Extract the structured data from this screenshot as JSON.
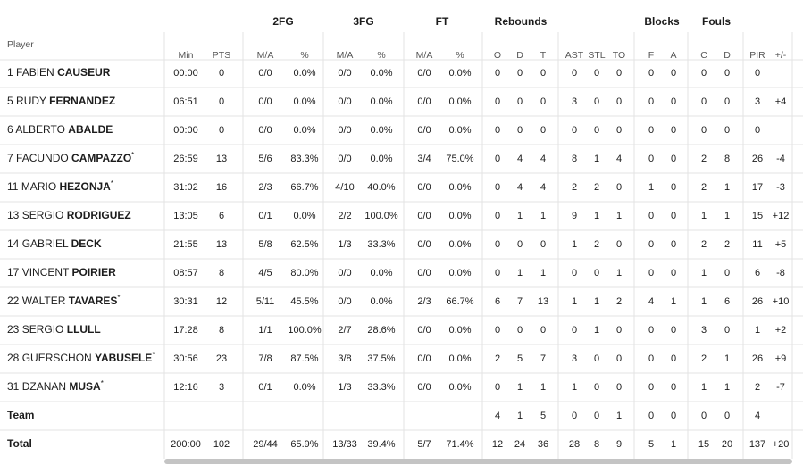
{
  "table": {
    "player_header": "Player",
    "group_headers": [
      "2FG",
      "3FG",
      "FT",
      "Rebounds",
      "Blocks",
      "Fouls"
    ],
    "columns": [
      "Min",
      "PTS",
      "M/A",
      "%",
      "M/A",
      "%",
      "M/A",
      "%",
      "O",
      "D",
      "T",
      "AST",
      "STL",
      "TO",
      "F",
      "A",
      "C",
      "D",
      "PIR",
      "+/-"
    ],
    "rows": [
      {
        "number": "1",
        "first": "FABIEN",
        "last": "CAUSEUR",
        "stats": [
          "00:00",
          "0",
          "0/0",
          "0.0%",
          "0/0",
          "0.0%",
          "0/0",
          "0.0%",
          "0",
          "0",
          "0",
          "0",
          "0",
          "0",
          "0",
          "0",
          "0",
          "0",
          "0",
          null
        ]
      },
      {
        "number": "5",
        "first": "RUDY",
        "last": "FERNANDEZ",
        "stats": [
          "06:51",
          "0",
          "0/0",
          "0.0%",
          "0/0",
          "0.0%",
          "0/0",
          "0.0%",
          "0",
          "0",
          "0",
          "3",
          "0",
          "0",
          "0",
          "0",
          "0",
          "0",
          "3",
          "+4"
        ]
      },
      {
        "number": "6",
        "first": "ALBERTO",
        "last": "ABALDE",
        "stats": [
          "00:00",
          "0",
          "0/0",
          "0.0%",
          "0/0",
          "0.0%",
          "0/0",
          "0.0%",
          "0",
          "0",
          "0",
          "0",
          "0",
          "0",
          "0",
          "0",
          "0",
          "0",
          "0",
          null
        ]
      },
      {
        "number": "7",
        "first": "FACUNDO",
        "last": "CAMPAZZO",
        "mark": "*",
        "stats": [
          "26:59",
          "13",
          "5/6",
          "83.3%",
          "0/0",
          "0.0%",
          "3/4",
          "75.0%",
          "0",
          "4",
          "4",
          "8",
          "1",
          "4",
          "0",
          "0",
          "2",
          "8",
          "26",
          "-4"
        ]
      },
      {
        "number": "11",
        "first": "MARIO",
        "last": "HEZONJA",
        "mark": "*",
        "stats": [
          "31:02",
          "16",
          "2/3",
          "66.7%",
          "4/10",
          "40.0%",
          "0/0",
          "0.0%",
          "0",
          "4",
          "4",
          "2",
          "2",
          "0",
          "1",
          "0",
          "2",
          "1",
          "17",
          "-3"
        ]
      },
      {
        "number": "13",
        "first": "SERGIO",
        "last": "RODRIGUEZ",
        "stats": [
          "13:05",
          "6",
          "0/1",
          "0.0%",
          "2/2",
          "100.0%",
          "0/0",
          "0.0%",
          "0",
          "1",
          "1",
          "9",
          "1",
          "1",
          "0",
          "0",
          "1",
          "1",
          "15",
          "+12"
        ]
      },
      {
        "number": "14",
        "first": "GABRIEL",
        "last": "DECK",
        "stats": [
          "21:55",
          "13",
          "5/8",
          "62.5%",
          "1/3",
          "33.3%",
          "0/0",
          "0.0%",
          "0",
          "0",
          "0",
          "1",
          "2",
          "0",
          "0",
          "0",
          "2",
          "2",
          "11",
          "+5"
        ]
      },
      {
        "number": "17",
        "first": "VINCENT",
        "last": "POIRIER",
        "stats": [
          "08:57",
          "8",
          "4/5",
          "80.0%",
          "0/0",
          "0.0%",
          "0/0",
          "0.0%",
          "0",
          "1",
          "1",
          "0",
          "0",
          "1",
          "0",
          "0",
          "1",
          "0",
          "6",
          "-8"
        ]
      },
      {
        "number": "22",
        "first": "WALTER",
        "last": "TAVARES",
        "mark": "*",
        "stats": [
          "30:31",
          "12",
          "5/11",
          "45.5%",
          "0/0",
          "0.0%",
          "2/3",
          "66.7%",
          "6",
          "7",
          "13",
          "1",
          "1",
          "2",
          "4",
          "1",
          "1",
          "6",
          "26",
          "+10"
        ]
      },
      {
        "number": "23",
        "first": "SERGIO",
        "last": "LLULL",
        "stats": [
          "17:28",
          "8",
          "1/1",
          "100.0%",
          "2/7",
          "28.6%",
          "0/0",
          "0.0%",
          "0",
          "0",
          "0",
          "0",
          "1",
          "0",
          "0",
          "0",
          "3",
          "0",
          "1",
          "+2"
        ]
      },
      {
        "number": "28",
        "first": "GUERSCHON",
        "last": "YABUSELE",
        "mark": "*",
        "stats": [
          "30:56",
          "23",
          "7/8",
          "87.5%",
          "3/8",
          "37.5%",
          "0/0",
          "0.0%",
          "2",
          "5",
          "7",
          "3",
          "0",
          "0",
          "0",
          "0",
          "2",
          "1",
          "26",
          "+9"
        ]
      },
      {
        "number": "31",
        "first": "DZANAN",
        "last": "MUSA",
        "mark": "*",
        "stats": [
          "12:16",
          "3",
          "0/1",
          "0.0%",
          "1/3",
          "33.3%",
          "0/0",
          "0.0%",
          "0",
          "1",
          "1",
          "1",
          "0",
          "0",
          "0",
          "0",
          "1",
          "1",
          "2",
          "-7"
        ]
      }
    ],
    "team": {
      "label": "Team",
      "stats": [
        null,
        null,
        null,
        null,
        null,
        null,
        null,
        null,
        "4",
        "1",
        "5",
        "0",
        "0",
        "1",
        "0",
        "0",
        "0",
        "0",
        "4",
        null
      ]
    },
    "total": {
      "label": "Total",
      "stats": [
        "200:00",
        "102",
        "29/44",
        "65.9%",
        "13/33",
        "39.4%",
        "5/7",
        "71.4%",
        "12",
        "24",
        "36",
        "28",
        "8",
        "9",
        "5",
        "1",
        "15",
        "20",
        "137",
        "+20"
      ]
    }
  }
}
